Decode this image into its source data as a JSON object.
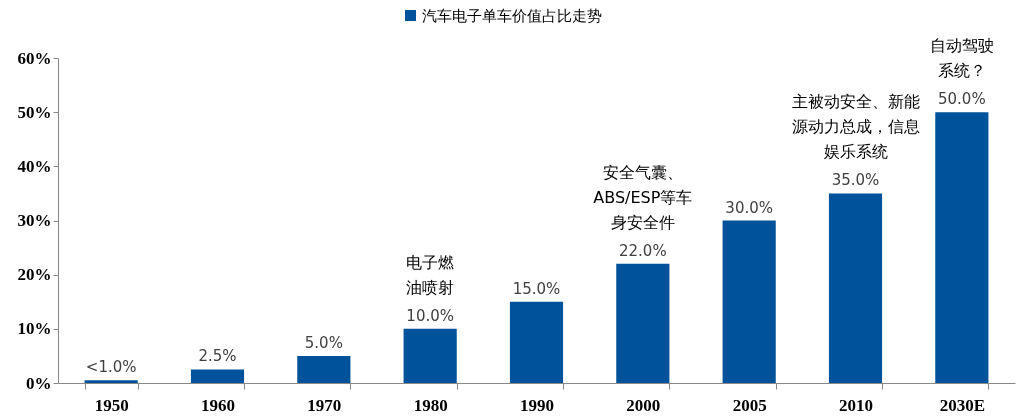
{
  "chart_data": {
    "type": "bar",
    "categories": [
      "1950",
      "1960",
      "1970",
      "1980",
      "1990",
      "2000",
      "2005",
      "2010",
      "2030E"
    ],
    "series": [
      {
        "name": "汽车电子单车价值占比走势",
        "color": "#00539b",
        "values": [
          0.5,
          2.5,
          5,
          10,
          15,
          22,
          30,
          35,
          50
        ],
        "value_labels": [
          "<1.0%",
          "2.5%",
          "5.0%",
          "10.0%",
          "15.0%",
          "22.0%",
          "30.0%",
          "35.0%",
          "50.0%"
        ]
      }
    ],
    "ylim": [
      0,
      60
    ],
    "yticks": [
      {
        "value": 0,
        "label": "0%"
      },
      {
        "value": 10,
        "label": "10%"
      },
      {
        "value": 20,
        "label": "20%"
      },
      {
        "value": 30,
        "label": "30%"
      },
      {
        "value": 40,
        "label": "40%"
      },
      {
        "value": 50,
        "label": "50%"
      },
      {
        "value": 60,
        "label": "60%"
      }
    ],
    "grid": false,
    "legend": "top",
    "annotations": [
      {
        "text": "电子燃油喷射",
        "x": "1980",
        "y": 10
      },
      {
        "text": "安全气囊、ABS/ESP等车身安全件",
        "x": "2000",
        "y": 22
      },
      {
        "text": "主被动安全、新能源动力总成，信息娱乐系统",
        "x": "2010",
        "y": 35
      },
      {
        "text": "自动驾驶系统？",
        "x": "2030E",
        "y": 50
      }
    ]
  }
}
